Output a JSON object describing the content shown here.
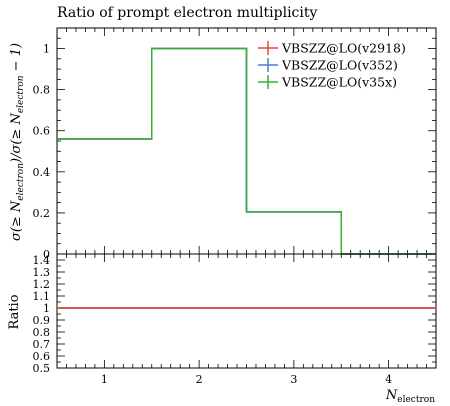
{
  "chart_data": {
    "type": "line",
    "title": "Ratio of prompt electron multiplicity",
    "xlabel": {
      "main": "N",
      "sub": "electron"
    },
    "ylabel": {
      "prefix": "σ(≥ N",
      "sub1": "electron",
      "middle": ")/σ(≥ N",
      "sub2": "electron",
      "suffix": " − 1)"
    },
    "ratio_ylabel": "Ratio",
    "xlim": [
      0.5,
      4.5
    ],
    "ylim": [
      0,
      1.1
    ],
    "ratio_ylim": [
      0.5,
      1.45
    ],
    "x_ticks": [
      1,
      2,
      3,
      4
    ],
    "y_ticks": [
      0,
      0.2,
      0.4,
      0.6,
      0.8,
      1
    ],
    "ratio_y_ticks": [
      0.5,
      0.6,
      0.7,
      0.8,
      0.9,
      1,
      1.1,
      1.2,
      1.3,
      1.4
    ],
    "bins": [
      [
        0.5,
        1.5
      ],
      [
        1.5,
        2.5
      ],
      [
        2.5,
        3.5
      ],
      [
        3.5,
        4.5
      ]
    ],
    "series": [
      {
        "name": "VBSZZ@LO(v2918)",
        "color": "#e8442a",
        "values": [
          0.56,
          1.0,
          0.205,
          0.0
        ],
        "ratio": [
          1.0,
          1.0,
          1.0,
          1.0
        ]
      },
      {
        "name": "VBSZZ@LO(v352)",
        "color": "#4a7fd6",
        "values": [
          0.56,
          1.0,
          0.205,
          0.0
        ],
        "ratio": [
          1.0,
          1.0,
          1.0,
          1.0
        ]
      },
      {
        "name": "VBSZZ@LO(v35x)",
        "color": "#35b035",
        "values": [
          0.56,
          1.0,
          0.205,
          0.0
        ],
        "ratio": [
          1.0,
          1.0,
          1.0,
          1.0
        ]
      }
    ],
    "legend_position": "top-right"
  }
}
